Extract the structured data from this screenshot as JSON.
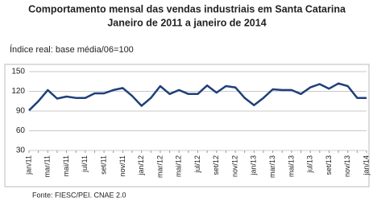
{
  "chart_data": {
    "type": "line",
    "title": "Comportamento mensal das vendas industriais em Santa Catarina",
    "subtitle": "Janeiro de 2011 a janeiro de 2014",
    "y_label": "Índice real: base média/06=100",
    "source": "Fonte: FIESC/PEI. CNAE 2.0",
    "categories": [
      "jan/11",
      null,
      "mar/11",
      null,
      "mai/11",
      null,
      "jul/11",
      null,
      "set/11",
      null,
      "nov/11",
      null,
      "jan/12",
      null,
      "mar/12",
      null,
      "mai/12",
      null,
      "jul/12",
      null,
      "set/12",
      null,
      "nov/12",
      null,
      "jan/13",
      null,
      "mar/13",
      null,
      "mai/13",
      null,
      "jul/13",
      null,
      "set/13",
      null,
      "nov/13",
      null,
      "jan/14"
    ],
    "series": [
      {
        "name": "Índice",
        "color": "#1f3f7a",
        "values": [
          91,
          105,
          122,
          109,
          112,
          110,
          110,
          117,
          117,
          122,
          125,
          113,
          98,
          110,
          128,
          116,
          122,
          116,
          116,
          129,
          118,
          128,
          126,
          110,
          99,
          110,
          123,
          122,
          122,
          116,
          126,
          131,
          124,
          132,
          128,
          110,
          110
        ]
      }
    ],
    "ylim": [
      30,
      150
    ],
    "yticks": [
      30,
      60,
      90,
      120,
      150
    ],
    "grid": true
  }
}
